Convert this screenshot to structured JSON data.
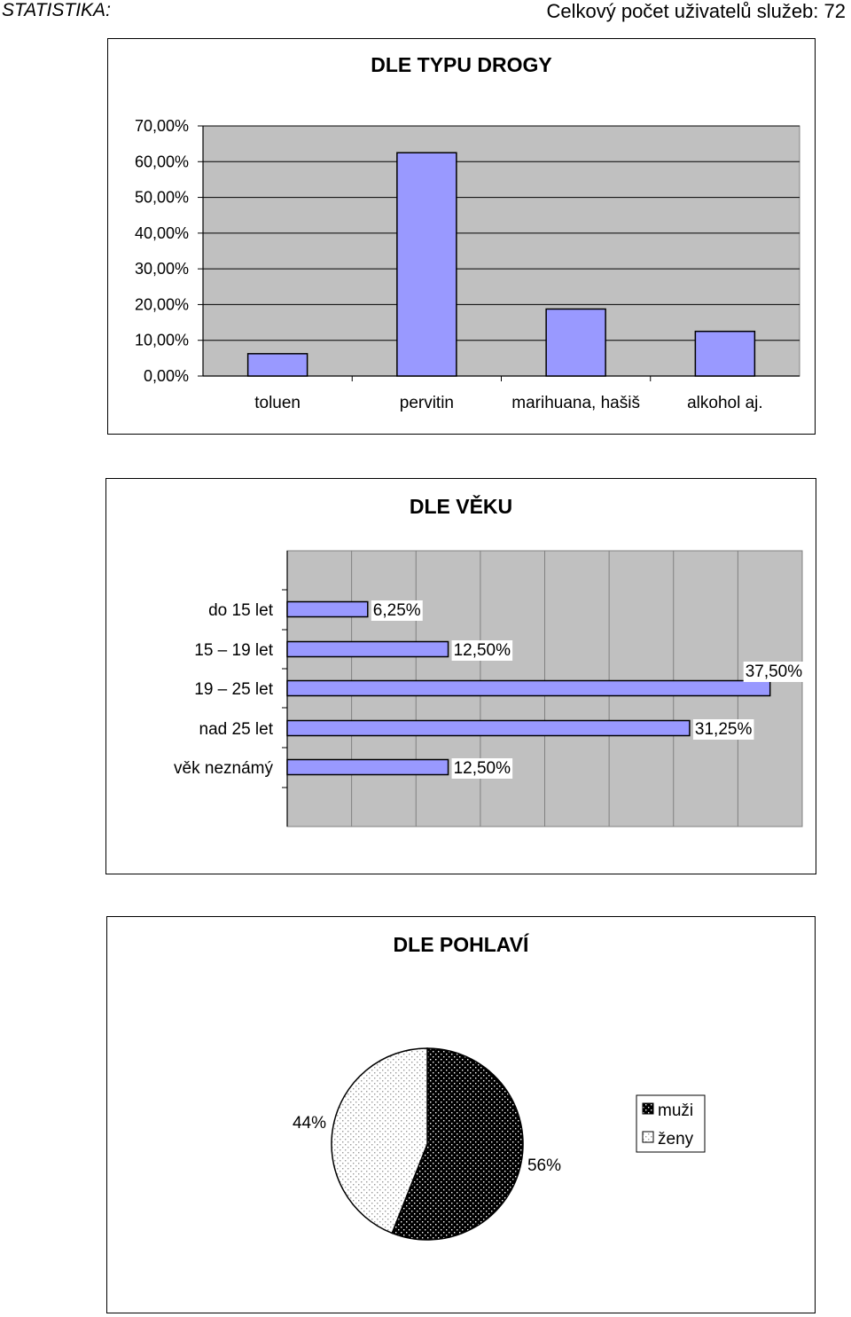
{
  "header": {
    "left": "STATISTIKA:",
    "right": "Celkový počet uživatelů služeb: 72"
  },
  "colors": {
    "bar_fill": "#9999ff",
    "plot_bg": "#c0c0c0",
    "pie_dark": "#000000",
    "pie_light": "#ffffff"
  },
  "chart_data": [
    {
      "type": "bar",
      "title": "DLE TYPU DROGY",
      "categories": [
        "toluen",
        "pervitin",
        "marihuana, hašiš",
        "alkohol aj."
      ],
      "values": [
        6.25,
        62.5,
        18.75,
        12.5
      ],
      "ylim": [
        0,
        70
      ],
      "yticks": [
        "0,00%",
        "10,00%",
        "20,00%",
        "30,00%",
        "40,00%",
        "50,00%",
        "60,00%",
        "70,00%"
      ],
      "grid": true
    },
    {
      "type": "bar",
      "orientation": "horizontal",
      "title": "DLE VĚKU",
      "categories": [
        "do 15 let",
        "15 – 19 let",
        "19 – 25 let",
        "nad 25 let",
        "věk neznámý"
      ],
      "values": [
        6.25,
        12.5,
        37.5,
        31.25,
        12.5
      ],
      "data_labels": [
        "6,25%",
        "12,50%",
        "37,50%",
        "31,25%",
        "12,50%"
      ],
      "xlim": [
        0,
        40
      ],
      "grid": true
    },
    {
      "type": "pie",
      "title": "DLE POHLAVÍ",
      "categories": [
        "muži",
        "ženy"
      ],
      "values": [
        56,
        44
      ],
      "data_labels": [
        "56%",
        "44%"
      ],
      "legend": "right"
    }
  ]
}
